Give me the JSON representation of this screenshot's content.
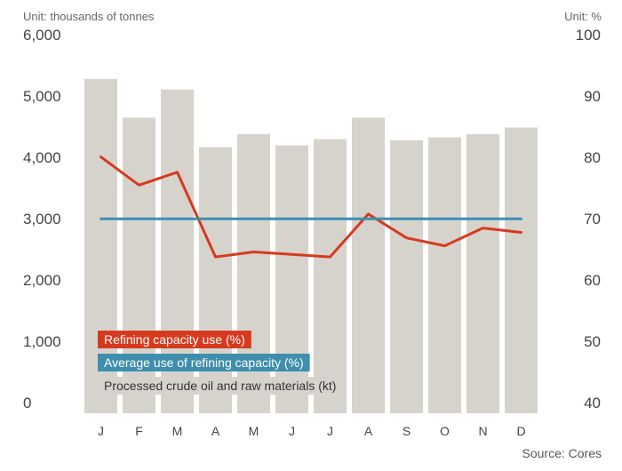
{
  "chart_data": {
    "type": "bar",
    "title": "",
    "left_unit_label": "Unit: thousands of tonnes",
    "right_unit_label": "Unit: %",
    "source": "Source: Cores",
    "categories": [
      "J",
      "F",
      "M",
      "A",
      "M",
      "J",
      "J",
      "A",
      "S",
      "O",
      "N",
      "D"
    ],
    "left_axis": {
      "ylim": [
        0,
        6000
      ],
      "ticks": [
        0,
        1000,
        2000,
        3000,
        4000,
        5000,
        6000
      ],
      "tick_labels": [
        "0",
        "1,000",
        "2,000",
        "3,000",
        "4,000",
        "5,000",
        "6,000"
      ]
    },
    "right_axis": {
      "ylim": [
        40,
        100
      ],
      "ticks": [
        40,
        50,
        60,
        70,
        80,
        90,
        100
      ],
      "tick_labels": [
        "40",
        "50",
        "60",
        "70",
        "80",
        "90",
        "100"
      ]
    },
    "grid": false,
    "legend_position": "bottom-left",
    "series": [
      {
        "name": "Processed crude oil and raw materials (kt)",
        "kind": "bar",
        "axis": "left",
        "color": "#d6d3cd",
        "legend_text_color": "#333333",
        "values": [
          5450,
          4820,
          5280,
          4340,
          4550,
          4370,
          4470,
          4820,
          4450,
          4500,
          4550,
          4660
        ]
      },
      {
        "name": "Refining capacity use (%)",
        "kind": "line",
        "axis": "right",
        "color": "#d63a1e",
        "legend_text_color": "#ffffff",
        "values": [
          81.8,
          77.2,
          79.3,
          65.5,
          66.3,
          65.9,
          65.5,
          72.5,
          68.6,
          67.3,
          70.2,
          69.5
        ]
      },
      {
        "name": "Average use of refining capacity (%)",
        "kind": "line",
        "axis": "right",
        "color": "#3e8eae",
        "legend_text_color": "#ffffff",
        "values": [
          71.7,
          71.7,
          71.7,
          71.7,
          71.7,
          71.7,
          71.7,
          71.7,
          71.7,
          71.7,
          71.7,
          71.7
        ]
      }
    ],
    "legend_order": [
      1,
      2,
      0
    ]
  }
}
